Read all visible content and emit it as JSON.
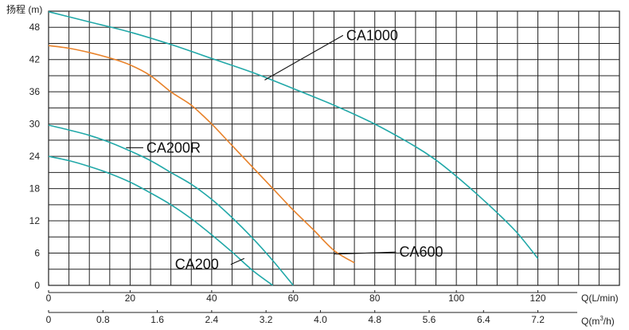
{
  "chart_data": {
    "type": "line",
    "title": "",
    "ylabel": "扬程 (m)",
    "xlabel": "Q(L/min)",
    "xlabel2_prefix": "Q(m",
    "xlabel2_sup": "3",
    "xlabel2_suffix": "/h)",
    "xlim": [
      0,
      140
    ],
    "ylim": [
      0,
      51
    ],
    "yticks": [
      0,
      6,
      12,
      18,
      24,
      30,
      36,
      42,
      48
    ],
    "xticks": [
      0,
      20,
      40,
      60,
      80,
      100,
      120
    ],
    "xticks2_labels": [
      "0",
      "0.8",
      "1.6",
      "2.4",
      "3.2",
      "4.0",
      "4.8",
      "5.6",
      "6.4",
      "7.2"
    ],
    "grid": true,
    "colors": {
      "teal": "#21a8a8",
      "orange": "#e8822a",
      "grid": "#222222"
    },
    "series": [
      {
        "name": "CA1000",
        "color": "#21a8a8",
        "x": [
          0,
          10,
          20,
          30,
          40,
          50,
          60,
          70,
          80,
          90,
          95,
          100,
          105,
          110,
          115,
          120
        ],
        "y": [
          50.9,
          49.0,
          47.1,
          44.8,
          42.2,
          39.6,
          36.6,
          33.5,
          30.0,
          25.8,
          23.3,
          20.3,
          17.0,
          13.5,
          9.7,
          5.0
        ],
        "label_at": {
          "x": 53,
          "y": 38.2
        },
        "label_pos": {
          "x": 73,
          "y": 46.5
        }
      },
      {
        "name": "CA600",
        "color": "#e8822a",
        "x": [
          0,
          5,
          10,
          15,
          20,
          25,
          30,
          35,
          40,
          45,
          50,
          55,
          60,
          65,
          70,
          75
        ],
        "y": [
          44.6,
          44.1,
          43.3,
          42.3,
          41.0,
          39.0,
          36.0,
          33.5,
          30.0,
          26.0,
          22.0,
          18.0,
          14.0,
          10.3,
          6.5,
          4.2
        ],
        "label_at": {
          "x": 70,
          "y": 5.8
        },
        "label_pos": {
          "x": 86,
          "y": 6.2
        }
      },
      {
        "name": "CA200R",
        "color": "#21a8a8",
        "x": [
          0,
          5,
          10,
          15,
          20,
          25,
          30,
          35,
          40,
          45,
          50,
          55,
          60
        ],
        "y": [
          29.8,
          28.9,
          27.9,
          26.6,
          25.0,
          23.2,
          21.0,
          18.8,
          16.0,
          12.6,
          8.8,
          4.6,
          0
        ],
        "label_at": {
          "x": 19,
          "y": 25.6
        },
        "label_pos": {
          "x": 24,
          "y": 25.6
        }
      },
      {
        "name": "CA200",
        "color": "#21a8a8",
        "x": [
          0,
          5,
          10,
          15,
          20,
          25,
          30,
          35,
          40,
          45,
          50,
          55
        ],
        "y": [
          24.0,
          23.2,
          22.1,
          20.8,
          19.2,
          17.2,
          15.0,
          12.4,
          9.4,
          6.2,
          2.8,
          0
        ],
        "label_at": {
          "x": 48,
          "y": 5.0
        },
        "label_pos": {
          "x": 31,
          "y": 3.9
        }
      }
    ]
  }
}
